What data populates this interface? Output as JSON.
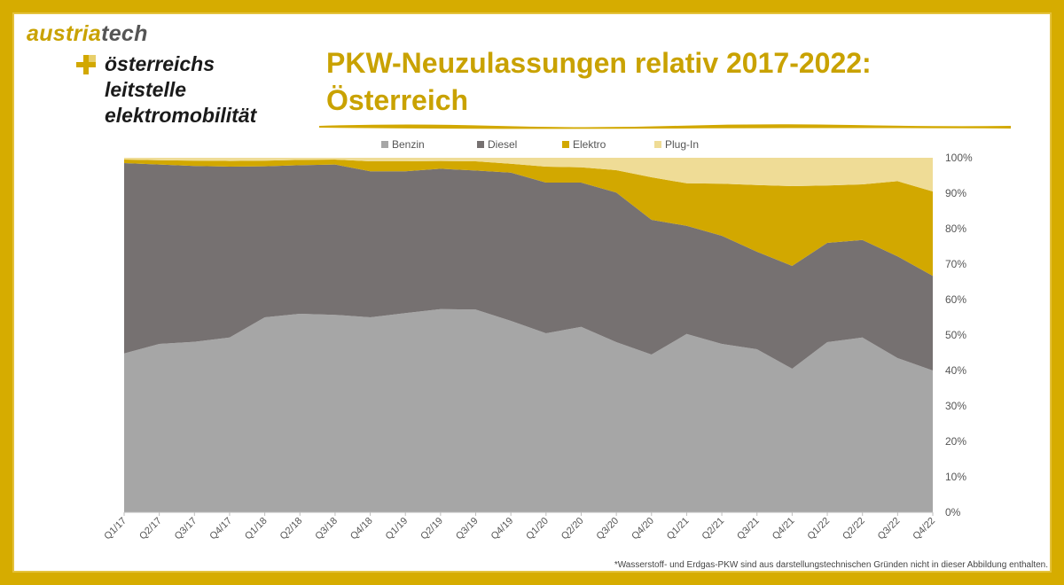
{
  "logo": {
    "brand_a": "austria",
    "brand_b": "tech",
    "lines": [
      "österreichs",
      "leitstelle",
      "elektromobilität"
    ]
  },
  "title": "PKW-Neuzulassungen relativ 2017-2022: Österreich",
  "title_lines": [
    "PKW-Neuzulassungen relativ 2017-2022:",
    "Österreich"
  ],
  "footnote": "*Wasserstoff- und Erdgas-PKW sind aus darstellungstechnischen Gründen nicht in dieser Abbildung enthalten.",
  "colors": {
    "frame": "#d6ac00",
    "title": "#c9a200",
    "Benzin": "#a6a6a6",
    "Diesel": "#767171",
    "Elektro": "#d2a800",
    "Plug-In": "#efdc96"
  },
  "chart_data": {
    "type": "area",
    "stacked": true,
    "categories": [
      "Q1/17",
      "Q2/17",
      "Q3/17",
      "Q4/17",
      "Q1/18",
      "Q2/18",
      "Q3/18",
      "Q4/18",
      "Q1/19",
      "Q2/19",
      "Q3/19",
      "Q4/19",
      "Q1/20",
      "Q2/20",
      "Q3/20",
      "Q4/20",
      "Q1/21",
      "Q2/21",
      "Q3/21",
      "Q4/21",
      "Q1/22",
      "Q2/22",
      "Q3/22",
      "Q4/22"
    ],
    "series": [
      {
        "name": "Benzin",
        "values": [
          44.8,
          47.5,
          48.1,
          49.3,
          55.0,
          56.0,
          55.7,
          55.0,
          56.2,
          57.3,
          57.2,
          54.0,
          50.5,
          52.3,
          48.0,
          44.5,
          50.3,
          47.5,
          46.0,
          40.5,
          48.0,
          49.3,
          43.5,
          40.0
        ]
      },
      {
        "name": "Diesel",
        "values": [
          53.7,
          50.6,
          49.6,
          48.2,
          42.6,
          41.9,
          42.4,
          41.2,
          40.0,
          39.6,
          39.2,
          41.8,
          42.5,
          40.7,
          42.2,
          38.0,
          30.5,
          30.5,
          27.5,
          29.0,
          28.0,
          27.5,
          28.7,
          26.7
        ]
      },
      {
        "name": "Elektro",
        "values": [
          1.0,
          1.2,
          1.5,
          1.6,
          1.6,
          1.5,
          1.4,
          2.8,
          2.8,
          2.2,
          2.6,
          2.5,
          4.5,
          4.3,
          6.3,
          12.0,
          12.0,
          14.7,
          18.8,
          22.5,
          16.2,
          15.7,
          21.2,
          23.8
        ]
      },
      {
        "name": "Plug-In",
        "values": [
          0.5,
          0.7,
          0.8,
          0.9,
          0.8,
          0.6,
          0.5,
          1.0,
          1.0,
          0.9,
          1.0,
          1.7,
          2.5,
          2.7,
          3.5,
          5.5,
          7.2,
          7.3,
          7.7,
          8.0,
          7.8,
          7.5,
          6.6,
          9.5
        ]
      }
    ],
    "y_ticks": [
      "0%",
      "10%",
      "20%",
      "30%",
      "40%",
      "50%",
      "60%",
      "70%",
      "80%",
      "90%",
      "100%"
    ],
    "ylim": [
      0,
      100
    ],
    "legend_position": "top",
    "grid": false
  }
}
